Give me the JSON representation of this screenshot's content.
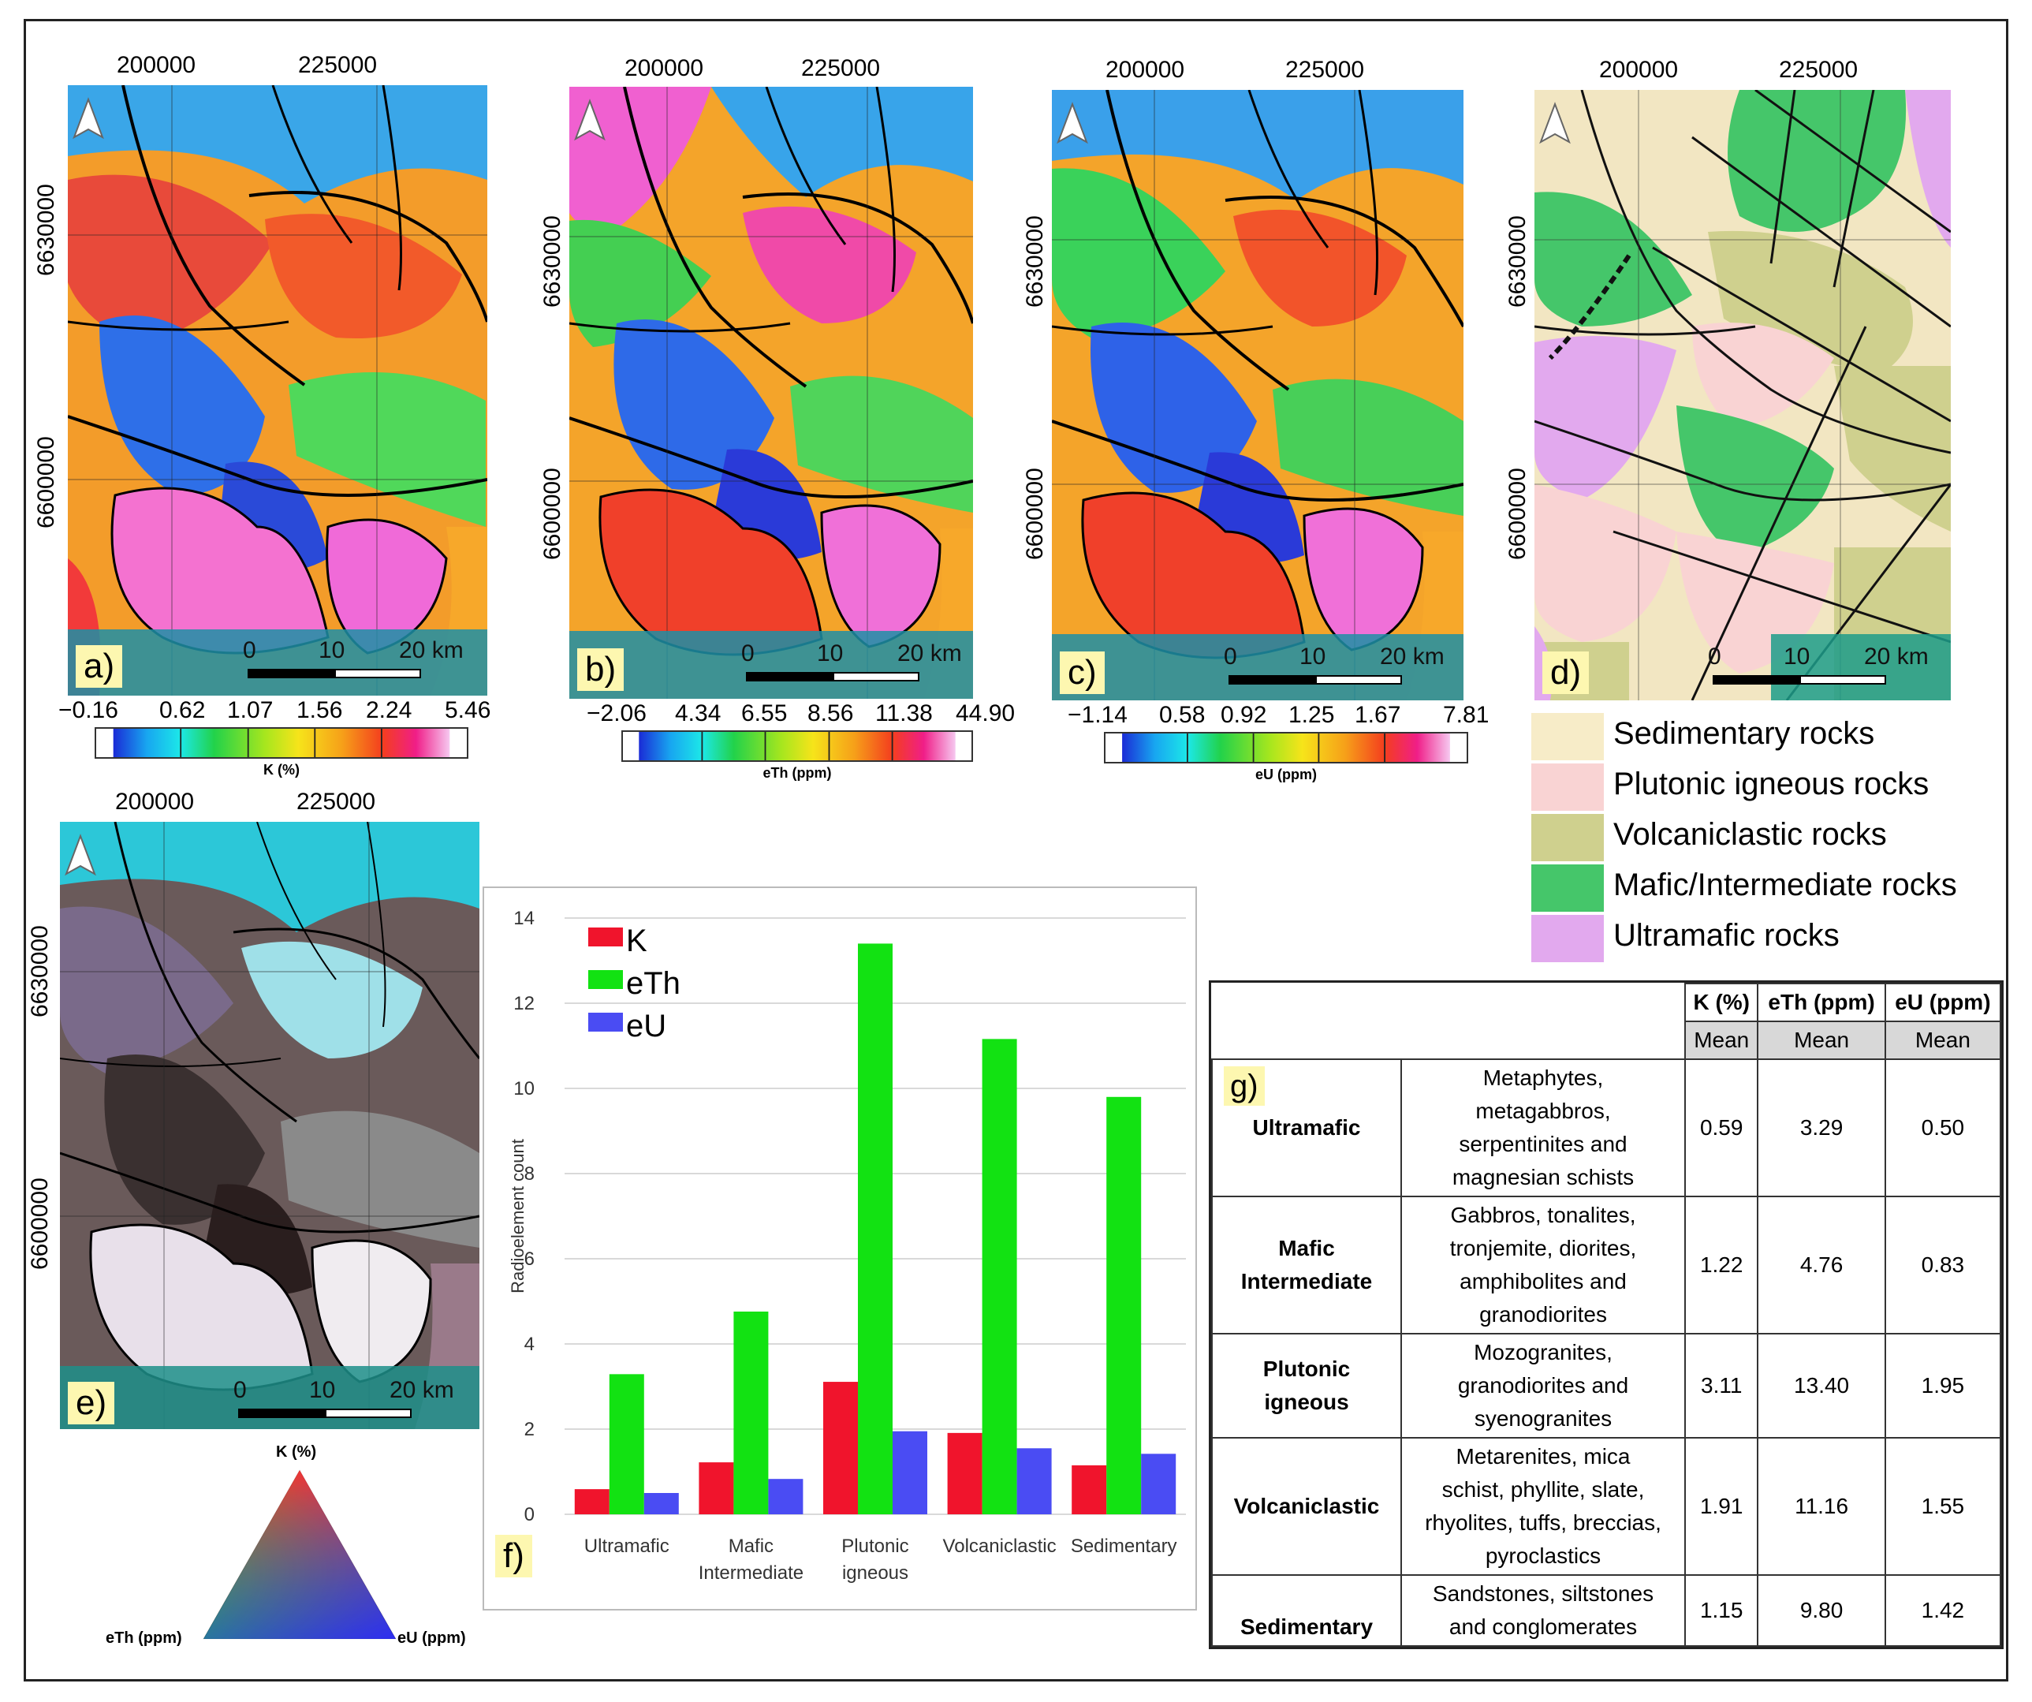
{
  "coords": {
    "x_ticks": [
      "200000",
      "225000"
    ],
    "y_ticks": [
      "6630000",
      "6600000"
    ]
  },
  "panels": {
    "a": "a)",
    "b": "b)",
    "c": "c)",
    "d": "d)",
    "e": "e)",
    "f": "f)",
    "g": "g)"
  },
  "scale_bar": {
    "t0": "0",
    "t1": "10",
    "t2": "20 km"
  },
  "colorbars": {
    "k": {
      "ticks": [
        "−0.16",
        "0.62",
        "1.07",
        "1.56",
        "2.24",
        "5.46"
      ],
      "label": "K (%)"
    },
    "eth": {
      "ticks": [
        "−2.06",
        "4.34",
        "6.55",
        "8.56",
        "11.38",
        "44.90"
      ],
      "label": "eTh (ppm)"
    },
    "eu": {
      "ticks": [
        "−1.14",
        "0.58",
        "0.92",
        "1.25",
        "1.67",
        "7.81"
      ],
      "label": "eU (ppm)"
    }
  },
  "geology_legend": [
    {
      "label": "Sedimentary rocks",
      "color": "#f7ecc8"
    },
    {
      "label": "Plutonic igneous rocks",
      "color": "#f9d3d3"
    },
    {
      "label": "Volcaniclastic rocks",
      "color": "#cfd08e"
    },
    {
      "label": "Mafic/Intermediate rocks",
      "color": "#45c66a"
    },
    {
      "label": "Ultramafic rocks",
      "color": "#e2a9ee"
    }
  ],
  "ternary": {
    "top": "K (%)",
    "left": "eTh (ppm)",
    "right": "eU (ppm)"
  },
  "chart_data": {
    "type": "bar",
    "categories": [
      "Ultramafic",
      "Mafic Intermediate",
      "Plutonic igneous",
      "Volcaniclastic",
      "Sedimentary"
    ],
    "category_lines": [
      [
        "Ultramafic"
      ],
      [
        "Mafic",
        "Intermediate"
      ],
      [
        "Plutonic",
        "igneous"
      ],
      [
        "Volcaniclastic"
      ],
      [
        "Sedimentary"
      ]
    ],
    "series": [
      {
        "name": "K",
        "color": "#f0142c",
        "values": [
          0.59,
          1.22,
          3.11,
          1.91,
          1.15
        ]
      },
      {
        "name": "eTh",
        "color": "#12e212",
        "values": [
          3.29,
          4.76,
          13.4,
          11.16,
          9.8
        ]
      },
      {
        "name": "eU",
        "color": "#4a4cf3",
        "values": [
          0.5,
          0.83,
          1.95,
          1.55,
          1.42
        ]
      }
    ],
    "ylabel": "Radioelement count",
    "ylim": [
      0,
      14
    ],
    "yticks": [
      "0",
      "2",
      "4",
      "6",
      "8",
      "10",
      "12",
      "14"
    ],
    "grid": true,
    "legend": "top-left"
  },
  "table": {
    "headers": [
      "K (%)",
      "eTh (ppm)",
      "eU (ppm)"
    ],
    "subheaders": [
      "Mean",
      "Mean",
      "Mean"
    ],
    "rows": [
      {
        "group": [
          "Ultramafic"
        ],
        "desc": [
          "Metaphytes,",
          "metagabbros,",
          "serpentinites and",
          "magnesian schists"
        ],
        "k": "0.59",
        "eth": "3.29",
        "eu": "0.50"
      },
      {
        "group": [
          "Mafic",
          "Intermediate"
        ],
        "desc": [
          "Gabbros, tonalites,",
          "tronjemite, diorites,",
          "amphibolites and",
          "granodiorites"
        ],
        "k": "1.22",
        "eth": "4.76",
        "eu": "0.83"
      },
      {
        "group": [
          "Plutonic",
          "igneous"
        ],
        "desc": [
          "Mozogranites,",
          "granodiorites and",
          "syenogranites"
        ],
        "k": "3.11",
        "eth": "13.40",
        "eu": "1.95"
      },
      {
        "group": [
          "Volcaniclastic"
        ],
        "desc": [
          "Metarenites, mica",
          "schist, phyllite, slate,",
          "rhyolites, tuffs, breccias,",
          "pyroclastics"
        ],
        "k": "1.91",
        "eth": "11.16",
        "eu": "1.55"
      },
      {
        "group": [
          "Sedimentary"
        ],
        "desc": [
          "Sandstones, siltstones",
          "and conglomerates"
        ],
        "k": "1.15",
        "eth": "9.80",
        "eu": "1.42"
      }
    ]
  }
}
